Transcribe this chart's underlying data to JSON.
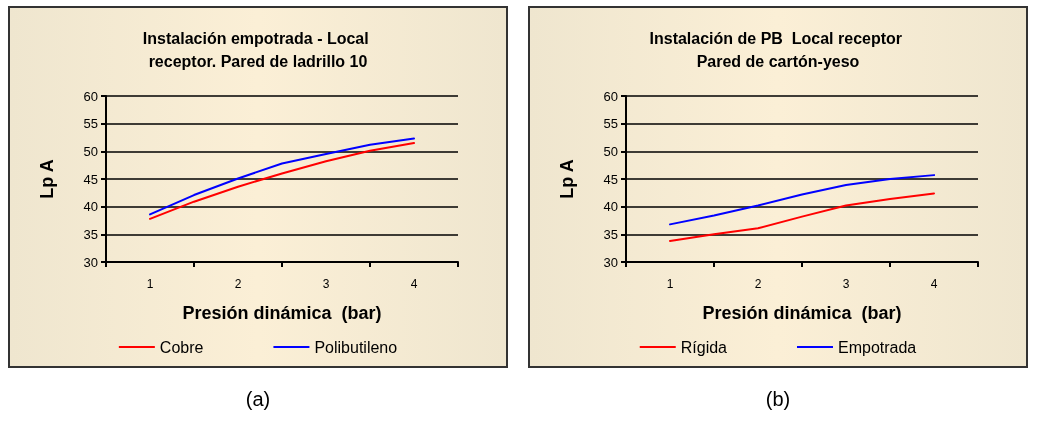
{
  "chart_data": [
    {
      "type": "line",
      "title": "Instalación empotrada - Local receptor. Pared de ladrillo 10",
      "xlabel": "Presión dinámica  (bar)",
      "ylabel": "Lp A",
      "annotations": [
        "(a)"
      ],
      "x": [
        1,
        1.5,
        2,
        2.5,
        3,
        3.5,
        4
      ],
      "series": [
        {
          "name": "Cobre",
          "color": "#ff0000",
          "values": [
            37.8,
            40.9,
            43.6,
            46.0,
            48.2,
            50.1,
            51.5
          ]
        },
        {
          "name": "Polibutileno",
          "color": "#0000ff",
          "values": [
            38.6,
            42.1,
            45.1,
            47.8,
            49.5,
            51.2,
            52.3
          ]
        }
      ],
      "xlim": [
        0.5,
        4.5
      ],
      "xticks": [
        {
          "value": 0.5,
          "label": null
        },
        1,
        {
          "value": 1.5,
          "label": null
        },
        2,
        {
          "value": 2.5,
          "label": null
        },
        3,
        {
          "value": 3.5,
          "label": null
        },
        4,
        {
          "value": 4.5,
          "label": null
        }
      ],
      "ylim": [
        30,
        60
      ],
      "yticks": [
        30,
        35,
        40,
        45,
        50,
        55,
        60
      ],
      "grid": "y",
      "legend": "bottom",
      "marker": "none",
      "line_style": "solid"
    },
    {
      "type": "line",
      "title": "Instalación de PB  Local receptor Pared de cartón-yeso",
      "xlabel": "Presión dinámica  (bar)",
      "ylabel": "Lp A",
      "annotations": [
        "(b)"
      ],
      "x": [
        1,
        1.5,
        2,
        2.5,
        3,
        3.5,
        4
      ],
      "series": [
        {
          "name": "Rígida",
          "color": "#ff0000",
          "values": [
            33.8,
            35.0,
            36.1,
            38.2,
            40.2,
            41.4,
            42.4
          ]
        },
        {
          "name": "Empotrada",
          "color": "#0000ff",
          "values": [
            36.8,
            38.4,
            40.2,
            42.2,
            43.9,
            45.0,
            45.7
          ]
        }
      ],
      "xlim": [
        0.5,
        4.5
      ],
      "xticks": [
        {
          "value": 0.5,
          "label": null
        },
        1,
        {
          "value": 1.5,
          "label": null
        },
        2,
        {
          "value": 2.5,
          "label": null
        },
        3,
        {
          "value": 3.5,
          "label": null
        },
        4,
        {
          "value": 4.5,
          "label": null
        }
      ],
      "ylim": [
        30,
        60
      ],
      "yticks": [
        30,
        35,
        40,
        45,
        50,
        55,
        60
      ],
      "grid": "y",
      "legend": "bottom",
      "marker": "none",
      "line_style": "solid"
    }
  ]
}
